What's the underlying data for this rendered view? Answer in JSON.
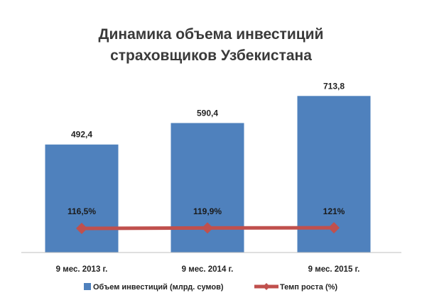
{
  "title_lines": [
    "Динамика объема инвестиций",
    "страховщиков Узбекистана"
  ],
  "chart_data": {
    "type": "bar",
    "categories": [
      "9 мес. 2013 г.",
      "9 мес. 2014 г.",
      "9 мес. 2015 г."
    ],
    "series": [
      {
        "name": "Объем инвестиций (млрд. сумов)",
        "type": "bar",
        "values": [
          492.4,
          590.4,
          713.8
        ],
        "labels": [
          "492,4",
          "590,4",
          "713,8"
        ],
        "color": "#4f81bd"
      },
      {
        "name": "Темп роста (%)",
        "type": "line",
        "values": [
          116.5,
          119.9,
          121
        ],
        "labels": [
          "116,5%",
          "119,9%",
          "121%"
        ],
        "color": "#c0504d"
      }
    ],
    "grid": false,
    "legend": "bottom"
  }
}
